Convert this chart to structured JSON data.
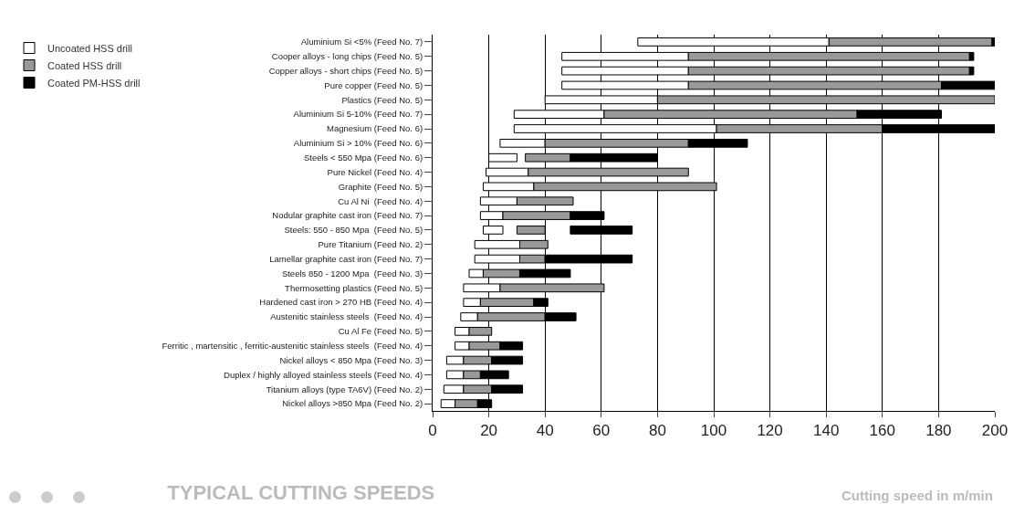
{
  "chart_data": {
    "type": "bar",
    "orientation": "horizontal",
    "title": "TYPICAL CUTTING SPEEDS",
    "xlabel": "Cutting speed in m/min",
    "categories": [
      "Aluminium Si <5% (Feed No. 7)",
      "Cooper alloys - long chips (Feed No. 5)",
      "Copper alloys - short chips (Feed No. 5)",
      "Pure copper (Feed No. 5)",
      "Plastics (Feed No. 5)",
      "Aluminium Si 5-10% (Feed No. 7)",
      "Magnesium (Feed No. 6)",
      "Aluminium Si > 10% (Feed No. 6)",
      "Steels < 550 Mpa (Feed No. 6)",
      "Pure Nickel (Feed No. 4)",
      "Graphite (Feed No. 5)",
      "Cu Al Ni  (Feed No. 4)",
      "Nodular graphite cast iron (Feed No. 7)",
      "Steels: 550 - 850 Mpa  (Feed No. 5)",
      "Pure Titanium (Feed No. 2)",
      "Lamellar graphite cast iron (Feed No. 7)",
      "Steels 850 - 1200 Mpa  (Feed No. 3)",
      "Thermosetting plastics (Feed No. 5)",
      "Hardened cast iron > 270 HB (Feed No. 4)",
      "Austenitic stainless steels  (Feed No. 4)",
      "Cu Al Fe (Feed No. 5)",
      "Ferritic , martensitic , ferritic-austenitic stainless steels  (Feed No. 4)",
      "Nickel alloys < 850 Mpa (Feed No. 3)",
      "Duplex / highly alloyed stainless steels (Feed No. 4)",
      "Titanium alloys (type TA6V) (Feed No. 2)",
      "Nickel alloys >850 Mpa (Feed No. 2)"
    ],
    "series": [
      {
        "name": "Uncoated HSS drill",
        "color": "#ffffff",
        "base": [
          73,
          46,
          46,
          46,
          40,
          29,
          29,
          24,
          20,
          19,
          18,
          17,
          17,
          18,
          15,
          15,
          13,
          11,
          11,
          10,
          8,
          8,
          5,
          5,
          4,
          3
        ],
        "values": [
          68,
          45,
          45,
          45,
          40,
          32,
          72,
          16,
          10,
          15,
          18,
          13,
          8,
          7,
          16,
          16,
          5,
          13,
          6,
          6,
          5,
          5,
          6,
          6,
          7,
          5
        ]
      },
      {
        "name": "Coated HSS drill",
        "color": "#999999",
        "base": [
          141,
          91,
          91,
          91,
          80,
          61,
          101,
          40,
          33,
          34,
          36,
          30,
          25,
          30,
          31,
          31,
          18,
          24,
          17,
          16,
          13,
          13,
          11,
          11,
          11,
          8
        ],
        "values": [
          58,
          100,
          100,
          90,
          120,
          90,
          59,
          51,
          16,
          57,
          65,
          20,
          24,
          10,
          10,
          9,
          13,
          37,
          19,
          24,
          8,
          11,
          10,
          6,
          10,
          8
        ]
      },
      {
        "name": "Coated PM-HSS drill",
        "color": "#000000",
        "base": [
          199,
          191,
          191,
          181,
          null,
          151,
          160,
          91,
          49,
          null,
          null,
          null,
          49,
          49,
          null,
          40,
          31,
          null,
          36,
          40,
          null,
          24,
          21,
          17,
          21,
          16
        ],
        "values": [
          1,
          1.5,
          1.5,
          19,
          null,
          30,
          40,
          21,
          31,
          null,
          null,
          null,
          12,
          22,
          null,
          31,
          18,
          null,
          5,
          11,
          null,
          8,
          11,
          10,
          11,
          5
        ]
      }
    ],
    "xlim": [
      0,
      200
    ],
    "xticks": [
      0,
      20,
      40,
      60,
      80,
      100,
      120,
      140,
      160,
      180,
      200
    ],
    "grid": "x",
    "legend": "left"
  }
}
